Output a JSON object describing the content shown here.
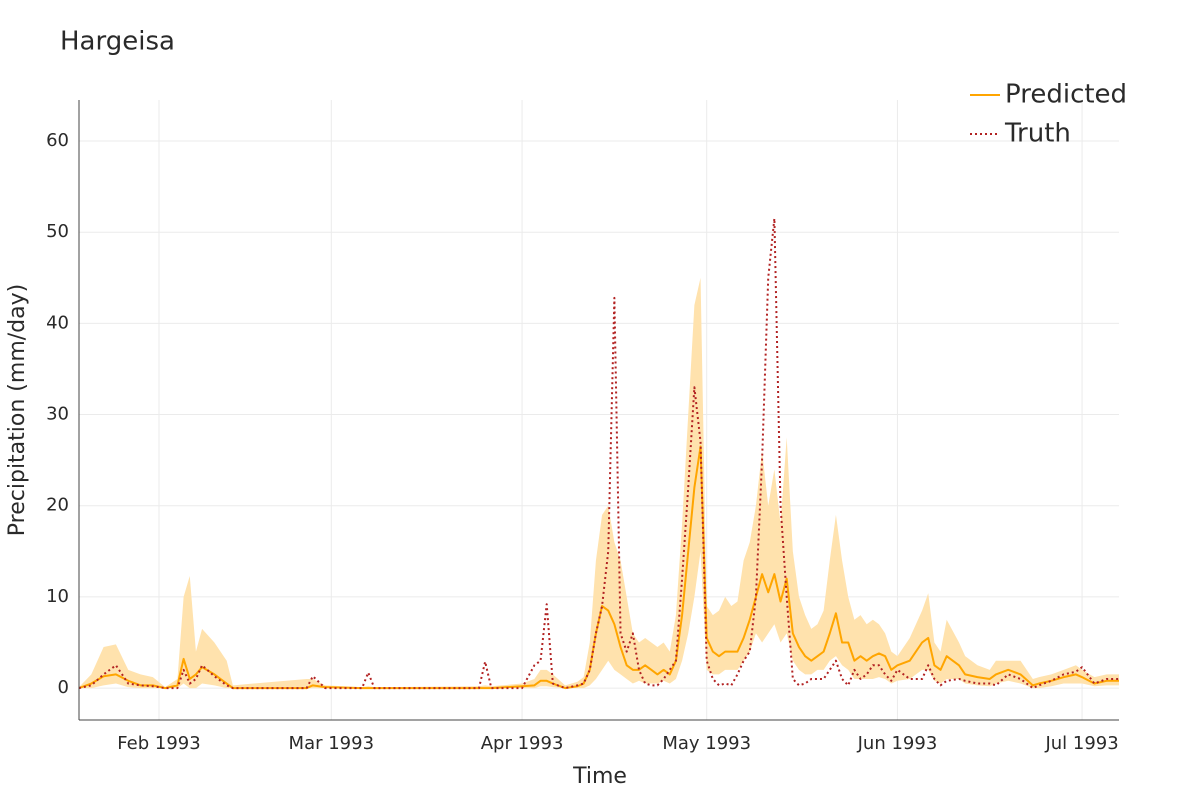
{
  "chart_data": {
    "type": "line",
    "title": "Hargeisa",
    "x_label": "Time",
    "y_label": "Precipitation (mm/day)",
    "x": [
      19,
      21,
      23,
      25,
      27,
      29,
      31,
      33,
      35,
      36,
      37,
      38,
      39,
      41,
      43,
      44,
      56,
      57,
      59,
      65,
      66,
      67,
      84,
      85,
      86,
      91,
      93,
      94,
      95,
      96,
      98,
      100,
      101,
      102,
      103,
      104,
      105,
      106,
      107,
      108,
      109,
      110,
      111,
      112,
      113,
      114,
      115,
      116,
      117,
      118,
      119,
      120,
      121,
      122,
      123,
      124,
      125,
      126,
      127,
      128,
      129,
      130,
      131,
      132,
      133,
      134,
      135,
      136,
      137,
      138,
      139,
      140,
      141,
      142,
      143,
      144,
      145,
      146,
      147,
      148,
      149,
      150,
      151,
      152,
      154,
      156,
      157,
      158,
      159,
      160,
      162,
      163,
      165,
      167,
      168,
      170,
      172,
      174,
      175,
      177,
      179,
      181,
      182,
      184,
      186,
      188
    ],
    "series": [
      {
        "name": "Predicted",
        "color": "#ffa500",
        "band_color": "#ffe2ad",
        "values": [
          0,
          0.5,
          1.3,
          1.5,
          0.8,
          0.3,
          0.3,
          0,
          0.3,
          3.2,
          1,
          1.5,
          2.3,
          1.5,
          0.5,
          0,
          0,
          0.3,
          0.1,
          0,
          0,
          0,
          0,
          0,
          0,
          0.2,
          0.3,
          0.8,
          0.8,
          0.5,
          0,
          0.2,
          0.5,
          2,
          6,
          9,
          8.5,
          7,
          4.5,
          2.5,
          2,
          2,
          2.5,
          2,
          1.5,
          2,
          1.5,
          3,
          8,
          15,
          22,
          26.5,
          5.5,
          4,
          3.5,
          4,
          4,
          4,
          5.5,
          7.5,
          10,
          12.5,
          10.5,
          12.5,
          9.5,
          12,
          6,
          4.5,
          3.5,
          3,
          3.5,
          4,
          6,
          8.2,
          5,
          5,
          3,
          3.5,
          3,
          3.5,
          3.8,
          3.5,
          2,
          2.5,
          3,
          5,
          5.5,
          2.5,
          2,
          3.5,
          2.5,
          1.5,
          1.2,
          1,
          1.5,
          2,
          1.5,
          0.3,
          0.5,
          0.8,
          1.2,
          1.5,
          1.2,
          0.5,
          0.8,
          0.8
        ],
        "lower": [
          0,
          0,
          0.3,
          0.5,
          0.1,
          0,
          0,
          0,
          0,
          0.5,
          0,
          0,
          0.5,
          0.3,
          0,
          0,
          0,
          0,
          0,
          0,
          0,
          0,
          0,
          0,
          0,
          0,
          0,
          0.2,
          0.2,
          0.1,
          0,
          0,
          0,
          0.3,
          1,
          2,
          3,
          2,
          1.5,
          1,
          0.5,
          0.8,
          0.5,
          0.5,
          0.5,
          0.8,
          0.5,
          1,
          3,
          6,
          10,
          15,
          2,
          1.5,
          1.5,
          2,
          2,
          2,
          3,
          4,
          6,
          5,
          6,
          7,
          5,
          6,
          3,
          2,
          1.5,
          1.5,
          2,
          2,
          3,
          3.5,
          2.5,
          2,
          1,
          1,
          1,
          1,
          1.2,
          1,
          0.5,
          0.8,
          1,
          2,
          2,
          0.8,
          0.5,
          1,
          1,
          0.5,
          0.3,
          0.2,
          0.5,
          0.8,
          0.5,
          0,
          0,
          0.2,
          0.5,
          0.5,
          0.5,
          0.2,
          0.3,
          0.3
        ],
        "upper": [
          0.1,
          1.5,
          4.5,
          4.8,
          2,
          1.5,
          1.2,
          0.1,
          1,
          10,
          12.3,
          4,
          6.5,
          5,
          3,
          0.3,
          1,
          1,
          0.3,
          0.1,
          0.2,
          0.1,
          0.2,
          0.3,
          0.2,
          0.5,
          1,
          2,
          2,
          1.5,
          0.3,
          0.7,
          1.2,
          5,
          14,
          19,
          20,
          16,
          14,
          10,
          6,
          5,
          5.5,
          5,
          4.5,
          5,
          4,
          8,
          18,
          30,
          42,
          45,
          9,
          8,
          8.5,
          10,
          9,
          9.5,
          14,
          16,
          20,
          26,
          20,
          24,
          18,
          27.5,
          15,
          10,
          8,
          6.5,
          7,
          8.5,
          14,
          19,
          14,
          10,
          7.5,
          8,
          7,
          7.5,
          7,
          6,
          4,
          3.5,
          5.5,
          8.5,
          10.4,
          5,
          4,
          7.5,
          5,
          3.5,
          2.5,
          2,
          3,
          3,
          3,
          1,
          1.2,
          1.5,
          2,
          2.5,
          2,
          1.2,
          1.5,
          1.5
        ]
      },
      {
        "name": "Truth",
        "color": "#b22222",
        "dash": "dot",
        "values": [
          0,
          0.3,
          1.5,
          2.5,
          0.5,
          0.3,
          0.2,
          0,
          0,
          2,
          0.5,
          1,
          2.5,
          1.3,
          0.3,
          0,
          0,
          1.3,
          0,
          0,
          1.7,
          0,
          0,
          2.9,
          0,
          0,
          2.5,
          3,
          9.2,
          0.5,
          0,
          0.3,
          0.5,
          2,
          6,
          9,
          15,
          42.8,
          6,
          4,
          6,
          2,
          0.5,
          0.3,
          0.3,
          1,
          2,
          3,
          12,
          22,
          33,
          27,
          3,
          1,
          0.3,
          0.5,
          0.3,
          1.5,
          3,
          4,
          10,
          25,
          45,
          51.5,
          20,
          10,
          1,
          0.3,
          0.5,
          1,
          1,
          1,
          2,
          3,
          1,
          0.3,
          2,
          1,
          1.5,
          2.5,
          2.5,
          1.5,
          0.8,
          2,
          1,
          1,
          2.5,
          1,
          0.3,
          0.8,
          1,
          0.8,
          0.5,
          0.5,
          0.3,
          1.5,
          1,
          0,
          0.3,
          0.8,
          1.5,
          1.8,
          2.3,
          0.5,
          1,
          1
        ]
      }
    ],
    "xlim": [
      19,
      188
    ],
    "xticks": [
      {
        "value": 32,
        "label": "Feb 1993"
      },
      {
        "value": 60,
        "label": "Mar 1993"
      },
      {
        "value": 91,
        "label": "Apr 1993"
      },
      {
        "value": 121,
        "label": "May 1993"
      },
      {
        "value": 152,
        "label": "Jun 1993"
      },
      {
        "value": 182,
        "label": "Jul 1993"
      }
    ],
    "ylim": [
      -3.5,
      64.5
    ],
    "yticks": [
      0,
      10,
      20,
      30,
      40,
      50,
      60
    ],
    "grid": true,
    "legend": "top right"
  }
}
